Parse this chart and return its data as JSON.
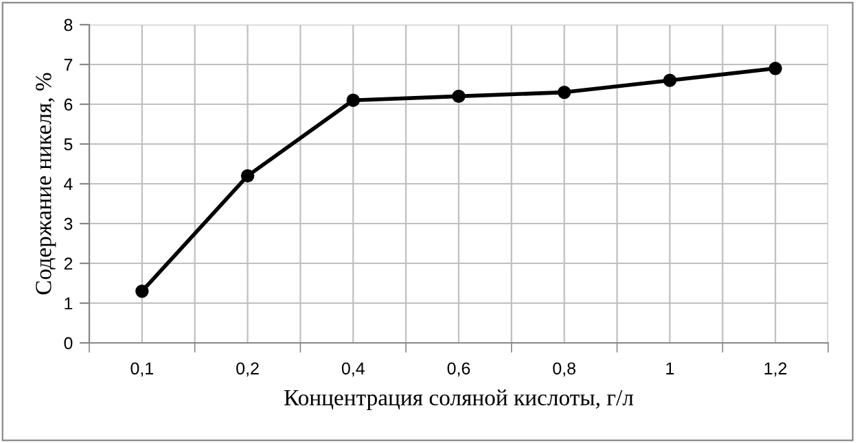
{
  "chart_data": {
    "type": "line",
    "xlabel": "Концентрация соляной кислоты, г/л",
    "ylabel": "Содержание никеля, %",
    "categories": [
      "0,1",
      "0,2",
      "0,4",
      "0,6",
      "0,8",
      "1",
      "1,2"
    ],
    "series": [
      {
        "color": "#000000",
        "values": [
          1.3,
          4.2,
          6.1,
          6.2,
          6.3,
          6.6,
          6.9
        ]
      }
    ],
    "ylim": [
      0,
      8
    ],
    "yticks": [
      0,
      1,
      2,
      3,
      4,
      5,
      6,
      7,
      8
    ],
    "grid": true,
    "marker": "circle",
    "line_style": "solid"
  }
}
